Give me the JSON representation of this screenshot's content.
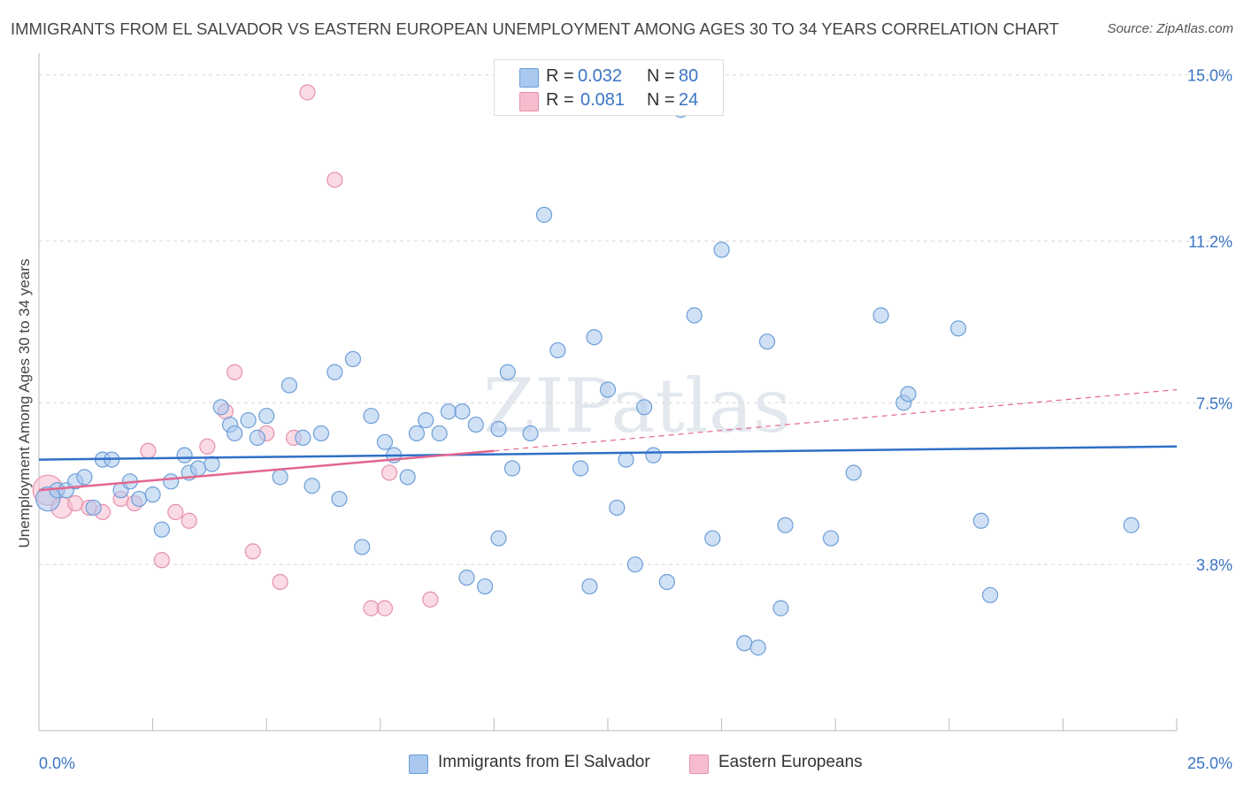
{
  "title": "IMMIGRANTS FROM EL SALVADOR VS EASTERN EUROPEAN UNEMPLOYMENT AMONG AGES 30 TO 34 YEARS CORRELATION CHART",
  "source": "Source: ZipAtlas.com",
  "watermark": "ZIPatlas",
  "legend_stats": [
    {
      "r_label": "R =",
      "r_value": "0.032",
      "n_label": "N =",
      "n_value": "80"
    },
    {
      "r_label": "R =",
      "r_value": "0.081",
      "n_label": "N =",
      "n_value": "24"
    }
  ],
  "legend_bottom": [
    "Immigrants from El Salvador",
    "Eastern Europeans"
  ],
  "colors": {
    "blue_fill": "#aac8ee",
    "blue_stroke": "#6d9ed8",
    "blue_line": "#2f6fc6",
    "pink_fill": "#f6bccd",
    "pink_stroke": "#e691ab",
    "pink_line": "#e2668f",
    "axis_text": "#3a75c4",
    "grid": "#d9d9d9"
  },
  "chart_data": {
    "type": "scatter",
    "title": "IMMIGRANTS FROM EL SALVADOR VS EASTERN EUROPEAN UNEMPLOYMENT AMONG AGES 30 TO 34 YEARS CORRELATION CHART",
    "xlabel": "",
    "ylabel": "Unemployment Among Ages 30 to 34 years",
    "xlim": [
      0,
      25
    ],
    "ylim": [
      0,
      15.5
    ],
    "x_tick_labels": [
      "0.0%",
      "25.0%"
    ],
    "y_ticks": [
      3.8,
      7.5,
      11.2,
      15.0
    ],
    "y_tick_labels": [
      "3.8%",
      "7.5%",
      "11.2%",
      "15.0%"
    ],
    "grid": "horizontal dashed",
    "legend_position": "top-center",
    "series": [
      {
        "name": "Immigrants from El Salvador",
        "color": "#aac8ee",
        "trend": {
          "x": [
            0,
            25
          ],
          "y": [
            6.2,
            6.5
          ]
        },
        "points": [
          [
            0.2,
            5.3,
            1.6
          ],
          [
            0.4,
            5.5,
            1
          ],
          [
            0.6,
            5.5,
            1
          ],
          [
            0.8,
            5.7,
            1
          ],
          [
            1.0,
            5.8,
            1
          ],
          [
            1.2,
            5.1,
            1
          ],
          [
            1.4,
            6.2,
            1
          ],
          [
            1.6,
            6.2,
            1
          ],
          [
            1.8,
            5.5,
            1
          ],
          [
            2.0,
            5.7,
            1
          ],
          [
            2.2,
            5.3,
            1
          ],
          [
            2.5,
            5.4,
            1
          ],
          [
            2.7,
            4.6,
            1
          ],
          [
            2.9,
            5.7,
            1
          ],
          [
            3.2,
            6.3,
            1
          ],
          [
            3.3,
            5.9,
            1
          ],
          [
            3.5,
            6.0,
            1
          ],
          [
            3.8,
            6.1,
            1
          ],
          [
            4.0,
            7.4,
            1
          ],
          [
            4.2,
            7.0,
            1
          ],
          [
            4.3,
            6.8,
            1
          ],
          [
            4.6,
            7.1,
            1
          ],
          [
            4.8,
            6.7,
            1
          ],
          [
            5.0,
            7.2,
            1
          ],
          [
            5.3,
            5.8,
            1
          ],
          [
            5.5,
            7.9,
            1
          ],
          [
            5.8,
            6.7,
            1
          ],
          [
            6.0,
            5.6,
            1
          ],
          [
            6.2,
            6.8,
            1
          ],
          [
            6.5,
            8.2,
            1
          ],
          [
            6.6,
            5.3,
            1
          ],
          [
            6.9,
            8.5,
            1
          ],
          [
            7.1,
            4.2,
            1
          ],
          [
            7.3,
            7.2,
            1
          ],
          [
            7.6,
            6.6,
            1
          ],
          [
            7.8,
            6.3,
            1
          ],
          [
            8.1,
            5.8,
            1
          ],
          [
            8.3,
            6.8,
            1
          ],
          [
            8.5,
            7.1,
            1
          ],
          [
            8.8,
            6.8,
            1
          ],
          [
            9.0,
            7.3,
            1
          ],
          [
            9.3,
            7.3,
            1
          ],
          [
            9.4,
            3.5,
            1
          ],
          [
            9.6,
            7.0,
            1
          ],
          [
            9.8,
            3.3,
            1
          ],
          [
            10.1,
            6.9,
            1
          ],
          [
            10.1,
            4.4,
            1
          ],
          [
            10.3,
            8.2,
            1
          ],
          [
            10.4,
            6.0,
            1
          ],
          [
            10.8,
            6.8,
            1
          ],
          [
            11.1,
            11.8,
            1
          ],
          [
            11.4,
            8.7,
            1
          ],
          [
            11.9,
            6.0,
            1
          ],
          [
            12.1,
            3.3,
            1
          ],
          [
            12.2,
            9.0,
            1
          ],
          [
            12.5,
            7.8,
            1
          ],
          [
            12.7,
            5.1,
            1
          ],
          [
            12.9,
            6.2,
            1
          ],
          [
            13.1,
            3.8,
            1
          ],
          [
            13.3,
            7.4,
            1
          ],
          [
            13.5,
            6.3,
            1
          ],
          [
            13.8,
            3.4,
            1
          ],
          [
            14.1,
            14.2,
            1
          ],
          [
            14.4,
            9.5,
            1
          ],
          [
            14.8,
            4.4,
            1
          ],
          [
            15.0,
            11.0,
            1
          ],
          [
            15.5,
            2.0,
            1
          ],
          [
            15.8,
            1.9,
            1
          ],
          [
            16.0,
            8.9,
            1
          ],
          [
            16.3,
            2.8,
            1
          ],
          [
            16.4,
            4.7,
            1
          ],
          [
            17.4,
            4.4,
            1
          ],
          [
            17.9,
            5.9,
            1
          ],
          [
            18.5,
            9.5,
            1
          ],
          [
            19.0,
            7.5,
            1
          ],
          [
            19.1,
            7.7,
            1
          ],
          [
            20.2,
            9.2,
            1
          ],
          [
            20.7,
            4.8,
            1
          ],
          [
            20.9,
            3.1,
            1
          ],
          [
            24.0,
            4.7,
            1
          ]
        ]
      },
      {
        "name": "Eastern Europeans",
        "color": "#f6bccd",
        "trend": {
          "x": [
            0,
            10
          ],
          "y": [
            5.5,
            6.4
          ]
        },
        "trend_extension": {
          "x": [
            10,
            25
          ],
          "y": [
            6.4,
            7.8
          ]
        },
        "points": [
          [
            0.2,
            5.5,
            2
          ],
          [
            0.5,
            5.1,
            1.4
          ],
          [
            0.8,
            5.2,
            1
          ],
          [
            1.1,
            5.1,
            1
          ],
          [
            1.4,
            5.0,
            1
          ],
          [
            1.8,
            5.3,
            1
          ],
          [
            2.1,
            5.2,
            1
          ],
          [
            2.4,
            6.4,
            1
          ],
          [
            2.7,
            3.9,
            1
          ],
          [
            3.0,
            5.0,
            1
          ],
          [
            3.3,
            4.8,
            1
          ],
          [
            3.7,
            6.5,
            1
          ],
          [
            4.1,
            7.3,
            1
          ],
          [
            4.3,
            8.2,
            1
          ],
          [
            4.7,
            4.1,
            1
          ],
          [
            5.0,
            6.8,
            1
          ],
          [
            5.3,
            3.4,
            1
          ],
          [
            5.6,
            6.7,
            1
          ],
          [
            5.9,
            14.6,
            1
          ],
          [
            6.5,
            12.6,
            1
          ],
          [
            7.3,
            2.8,
            1
          ],
          [
            7.6,
            2.8,
            1
          ],
          [
            7.7,
            5.9,
            1
          ],
          [
            8.6,
            3.0,
            1
          ]
        ]
      }
    ]
  }
}
